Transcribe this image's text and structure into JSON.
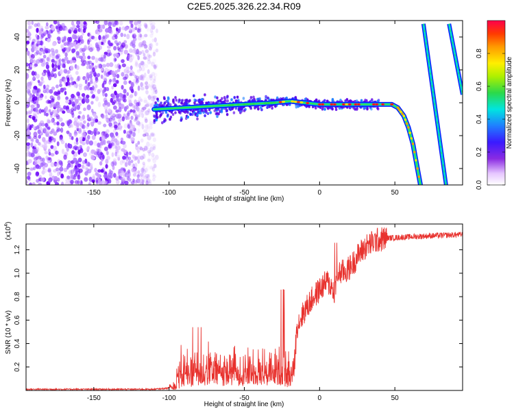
{
  "title": "C2E5.2025.326.22.34.R09",
  "chart_data": [
    {
      "type": "heatmap",
      "name": "spectrogram",
      "xlabel": "Height of straight line (km)",
      "ylabel": "Frequency (Hz)",
      "xlim": [
        -195,
        95
      ],
      "ylim": [
        -50,
        50
      ],
      "xticks": [
        -150,
        -100,
        -50,
        0,
        50
      ],
      "yticks": [
        -40,
        -20,
        0,
        20,
        40
      ],
      "colorbar": {
        "label": "Normalized spectral amplitude",
        "range": [
          0.0,
          1.0
        ],
        "ticks": [
          0.0,
          0.2,
          0.4,
          0.6,
          0.8
        ]
      },
      "main_track": {
        "points": [
          {
            "x": -110,
            "y": -4
          },
          {
            "x": -90,
            "y": -3
          },
          {
            "x": -70,
            "y": -2
          },
          {
            "x": -50,
            "y": -1
          },
          {
            "x": -30,
            "y": 0
          },
          {
            "x": -20,
            "y": 1
          },
          {
            "x": -10,
            "y": 0
          },
          {
            "x": 0,
            "y": -1
          },
          {
            "x": 10,
            "y": -1
          },
          {
            "x": 20,
            "y": -1
          },
          {
            "x": 30,
            "y": -1
          },
          {
            "x": 40,
            "y": -1
          },
          {
            "x": 48,
            "y": -1
          },
          {
            "x": 52,
            "y": -3
          },
          {
            "x": 56,
            "y": -8
          },
          {
            "x": 59,
            "y": -15
          },
          {
            "x": 62,
            "y": -25
          },
          {
            "x": 64,
            "y": -35
          },
          {
            "x": 66,
            "y": -45
          },
          {
            "x": 67,
            "y": -50
          }
        ]
      },
      "side_tracks": [
        {
          "from": {
            "x": 69,
            "y": 48
          },
          "to": {
            "x": 84,
            "y": -50
          }
        },
        {
          "from": {
            "x": 86,
            "y": 48
          },
          "to": {
            "x": 95,
            "y": 5
          }
        }
      ]
    },
    {
      "type": "line",
      "name": "snr",
      "xlabel": "Height of straight line (km)",
      "ylabel": "SNR (10 * v/v)",
      "multiplier": "(x10",
      "multiplier_exp": "4",
      "xlim": [
        -195,
        95
      ],
      "ylim": [
        0,
        1.42
      ],
      "xticks": [
        -150,
        -100,
        -50,
        0,
        50
      ],
      "yticks": [
        0.2,
        0.4,
        0.6,
        0.8,
        1.0,
        1.2
      ],
      "color": "#e8322e",
      "series": [
        {
          "x": -195,
          "y": 0.01
        },
        {
          "x": -150,
          "y": 0.01
        },
        {
          "x": -110,
          "y": 0.01
        },
        {
          "x": -100,
          "y": 0.02
        },
        {
          "x": -95,
          "y": 0.05
        },
        {
          "x": -88,
          "y": 0.15
        },
        {
          "x": -80,
          "y": 0.22
        },
        {
          "x": -70,
          "y": 0.24
        },
        {
          "x": -60,
          "y": 0.25
        },
        {
          "x": -50,
          "y": 0.25
        },
        {
          "x": -40,
          "y": 0.26
        },
        {
          "x": -30,
          "y": 0.27
        },
        {
          "x": -25,
          "y": 0.29
        },
        {
          "x": -20,
          "y": 0.1
        },
        {
          "x": -17,
          "y": 0.18
        },
        {
          "x": -15,
          "y": 0.55
        },
        {
          "x": -10,
          "y": 0.68
        },
        {
          "x": -5,
          "y": 0.78
        },
        {
          "x": 0,
          "y": 0.86
        },
        {
          "x": 5,
          "y": 0.93
        },
        {
          "x": 10,
          "y": 0.85
        },
        {
          "x": 12,
          "y": 1.0
        },
        {
          "x": 18,
          "y": 1.02
        },
        {
          "x": 22,
          "y": 1.08
        },
        {
          "x": 27,
          "y": 1.18
        },
        {
          "x": 32,
          "y": 1.24
        },
        {
          "x": 38,
          "y": 1.28
        },
        {
          "x": 45,
          "y": 1.3
        },
        {
          "x": 60,
          "y": 1.31
        },
        {
          "x": 75,
          "y": 1.32
        },
        {
          "x": 95,
          "y": 1.33
        }
      ]
    }
  ]
}
